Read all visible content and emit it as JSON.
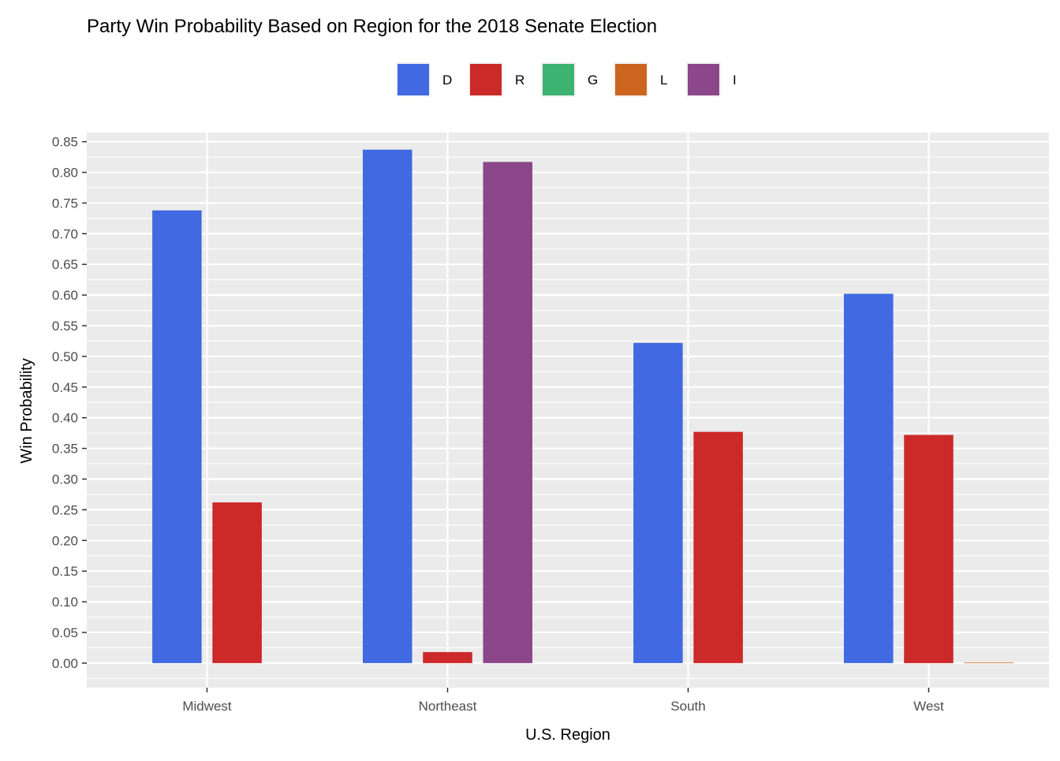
{
  "chart_data": {
    "type": "bar",
    "title": "Party Win Probability Based on Region for the 2018 Senate Election",
    "xlabel": "U.S. Region",
    "ylabel": "Win Probability",
    "categories": [
      "Midwest",
      "Northeast",
      "South",
      "West"
    ],
    "ylim": [
      -0.04,
      0.865
    ],
    "yticks": [
      0.0,
      0.05,
      0.1,
      0.15,
      0.2,
      0.25,
      0.3,
      0.35,
      0.4,
      0.45,
      0.5,
      0.55,
      0.6,
      0.65,
      0.7,
      0.75,
      0.8,
      0.85
    ],
    "grid": true,
    "legend_position": "top",
    "legend": [
      {
        "name": "D",
        "color": "#4169E1"
      },
      {
        "name": "R",
        "color": "#CC2929"
      },
      {
        "name": "G",
        "color": "#3CB371"
      },
      {
        "name": "L",
        "color": "#CC661E"
      },
      {
        "name": "I",
        "color": "#8B4789"
      }
    ],
    "series_by_category": [
      {
        "category": "Midwest",
        "bars": [
          {
            "party": "D",
            "value": 0.738
          },
          {
            "party": "R",
            "value": 0.262
          }
        ]
      },
      {
        "category": "Northeast",
        "bars": [
          {
            "party": "D",
            "value": 0.837
          },
          {
            "party": "R",
            "value": 0.018
          },
          {
            "party": "I",
            "value": 0.817
          }
        ]
      },
      {
        "category": "South",
        "bars": [
          {
            "party": "D",
            "value": 0.522
          },
          {
            "party": "R",
            "value": 0.377
          }
        ]
      },
      {
        "category": "West",
        "bars": [
          {
            "party": "D",
            "value": 0.602
          },
          {
            "party": "R",
            "value": 0.372
          },
          {
            "party": "L",
            "value": 0.001
          }
        ]
      }
    ]
  }
}
